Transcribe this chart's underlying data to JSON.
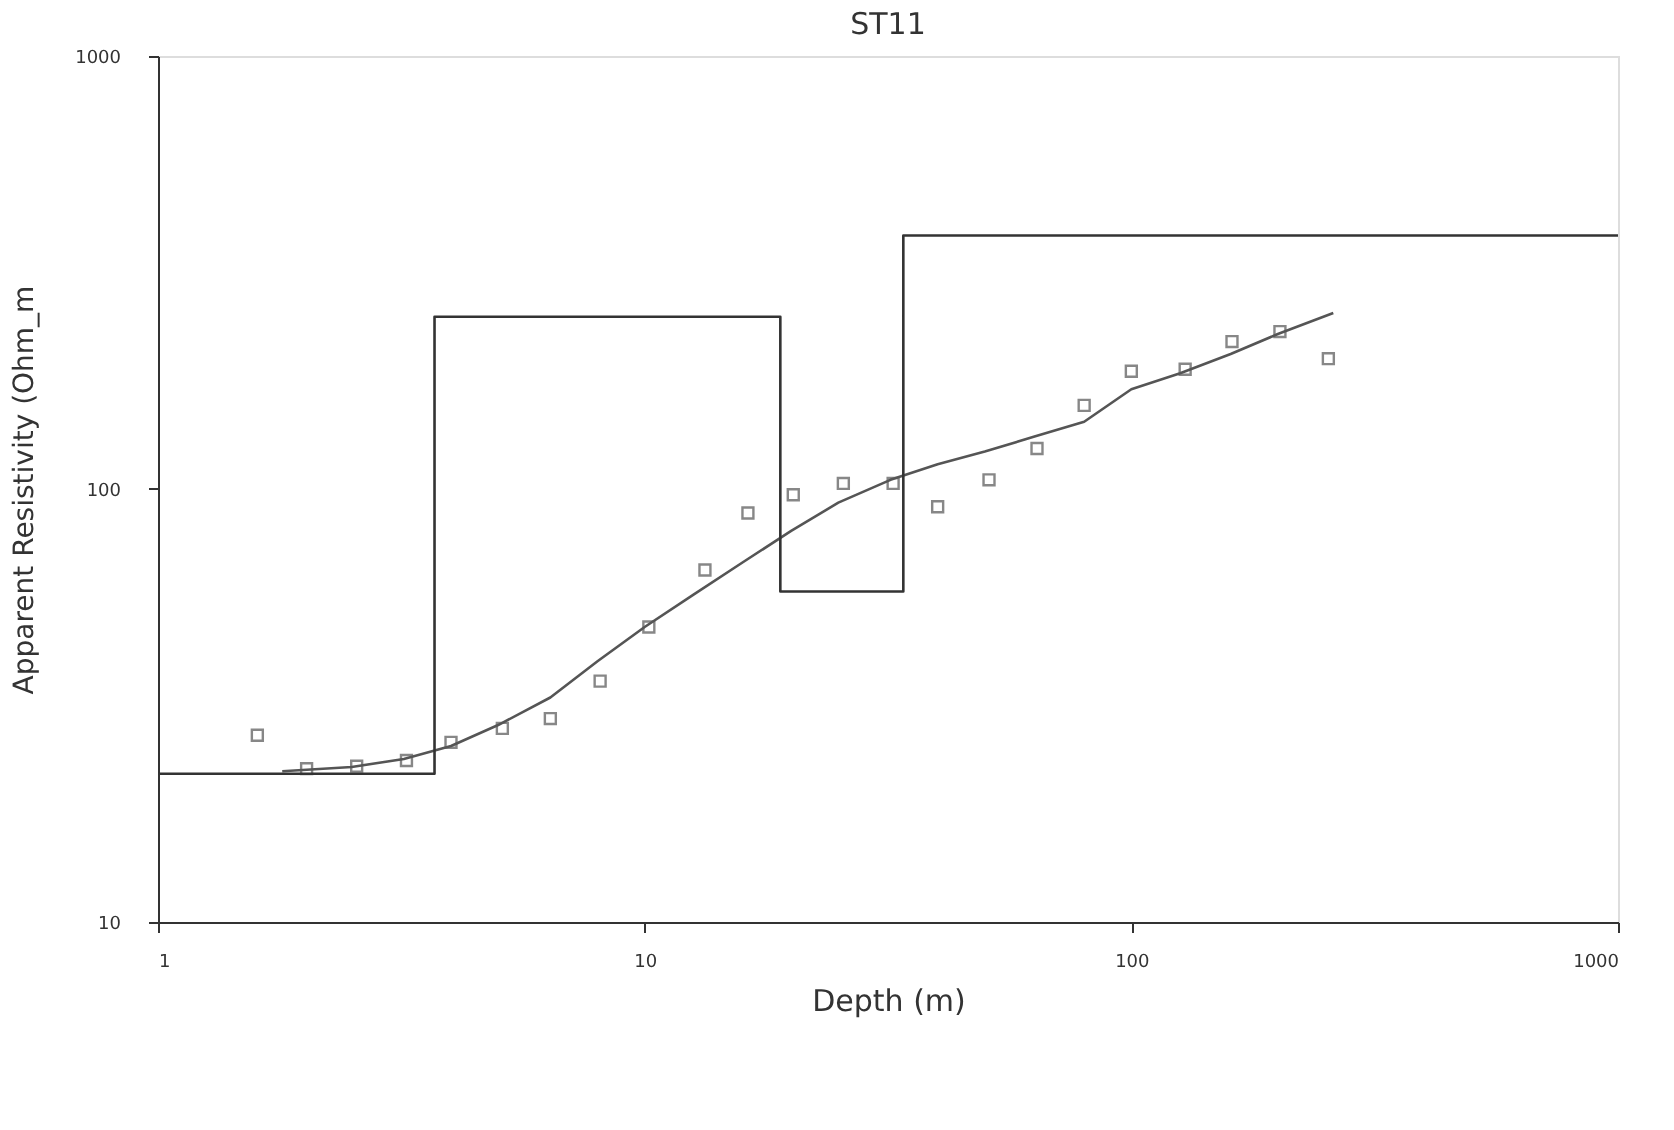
{
  "chart_data": {
    "type": "scatter",
    "title": "ST11",
    "xlabel": "Depth (m)",
    "ylabel": "Apparent Resistivity (Ohm_m",
    "log": "xy",
    "xlim": [
      1,
      1000
    ],
    "ylim": [
      10,
      1000
    ],
    "xticks": [
      1,
      10,
      100,
      1000
    ],
    "yticks": [
      10,
      100,
      1000
    ],
    "grid": false,
    "series": [
      {
        "marker": "square",
        "color": "#555555",
        "x": [
          1.6,
          2.02,
          2.56,
          3.24,
          4.0,
          5.1,
          6.4,
          8.1,
          10.2,
          13.3,
          16.3,
          20.2,
          25.6,
          32.4,
          40,
          51,
          64,
          80,
          100,
          129,
          161,
          202,
          254
        ],
        "values": [
          27,
          22.6,
          22.9,
          23.6,
          26,
          28,
          29.5,
          36,
          48,
          65,
          88,
          97,
          103,
          103,
          91,
          105,
          124,
          156,
          187,
          189,
          219,
          231,
          200
        ]
      },
      {
        "type": "line",
        "marker": "none",
        "line_style": "solid",
        "color": "#555555",
        "x": [
          1.8,
          2.5,
          3.2,
          4,
          5,
          6.4,
          8,
          10,
          12.6,
          16,
          20,
          25,
          32,
          40,
          50,
          63,
          80,
          100,
          126,
          160,
          200,
          260
        ],
        "values": [
          22.3,
          22.8,
          23.8,
          25.5,
          28.5,
          33,
          40,
          48,
          57,
          68,
          80,
          93,
          105,
          114,
          122,
          132,
          143,
          170,
          185,
          205,
          228,
          255
        ]
      },
      {
        "type": "step",
        "marker": "none",
        "line_style": "solid",
        "color": "#333333",
        "x": [
          1,
          3.7,
          19,
          34,
          1000
        ],
        "values": [
          22,
          250,
          58,
          385,
          385
        ]
      }
    ]
  }
}
